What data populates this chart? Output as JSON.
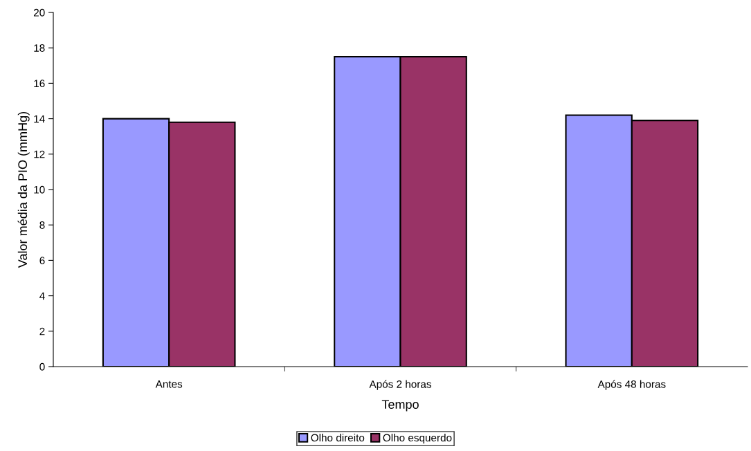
{
  "chart_data": {
    "type": "bar",
    "xlabel": "Tempo",
    "ylabel": "Valor média da PIO (mmHg)",
    "categories": [
      "Antes",
      "Após 2 horas",
      "Após 48 horas"
    ],
    "series": [
      {
        "name": "Olho direito",
        "color": "#9999ff",
        "values": [
          14.0,
          17.5,
          14.2
        ]
      },
      {
        "name": "Olho esquerdo",
        "color": "#993366",
        "values": [
          13.8,
          17.5,
          13.9
        ]
      }
    ],
    "ylim": [
      0,
      20
    ],
    "yticks": [
      0,
      2,
      4,
      6,
      8,
      10,
      12,
      14,
      16,
      18,
      20
    ],
    "grid": false,
    "legend": "bottom"
  }
}
